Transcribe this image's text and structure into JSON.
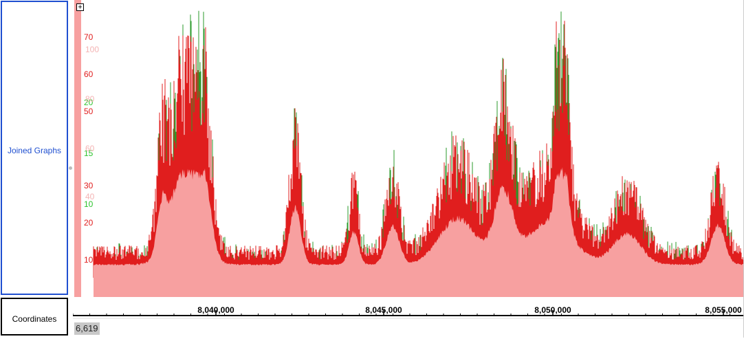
{
  "tracks": {
    "joined_graphs_label": "Joined Graphs",
    "coordinates_label": "Coordinates"
  },
  "expand_button": "+",
  "y_axis": {
    "red_ticks": [
      "70",
      "60",
      "50",
      "30",
      "20",
      "10"
    ],
    "green_ticks": [
      "20",
      "15",
      "10"
    ],
    "pink_ticks": [
      "100",
      "80",
      "60",
      "40"
    ]
  },
  "x_axis": {
    "labels": [
      "8,040,000",
      "8,045,000",
      "8,050,000",
      "8,055,000"
    ]
  },
  "coordinate_readout": "6,619",
  "colors": {
    "red_series": "#e01e1e",
    "green_series": "#2a9a2a",
    "pink_series": "#f7a0a0",
    "track_border": "#1f4fd0"
  }
}
